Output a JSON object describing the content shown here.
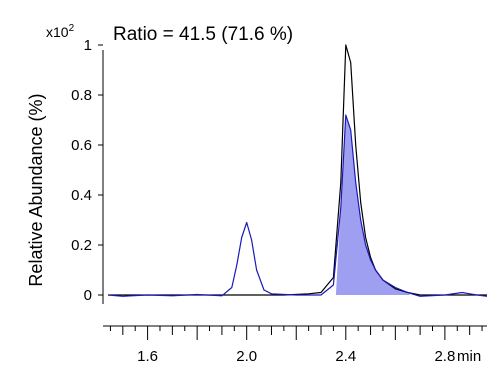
{
  "chart_data": {
    "type": "line",
    "title": "",
    "ylabel": "Relative Abundance (%)",
    "xlabel": "",
    "x_unit": "min",
    "y_multiplier": "x10",
    "y_multiplier_exp": "2",
    "annotation": "Ratio = 41.5 (71.6 %)",
    "xlim": [
      1.42,
      2.97
    ],
    "ylim": [
      -0.1,
      1.1
    ],
    "x_ticks": [
      1.6,
      2.0,
      2.4,
      2.8
    ],
    "y_ticks": [
      0,
      0.2,
      0.4,
      0.6,
      0.8,
      1
    ],
    "x_tick_labels": [
      "1.6",
      "2.0",
      "2.4",
      "2.8"
    ],
    "y_tick_labels": [
      "0",
      "0.2",
      "0.4",
      "0.6",
      "0.8",
      "1"
    ],
    "colors": {
      "series_black": "#000000",
      "series_blue": "#1a1ab8",
      "shaded_fill": "#9f9ff2"
    },
    "shaded_region": {
      "series": "blue",
      "x_start": 2.36,
      "x_end": 2.66
    },
    "series": [
      {
        "color": "#000000",
        "x": [
          1.44,
          1.6,
          1.8,
          1.95,
          2.0,
          2.05,
          2.15,
          2.25,
          2.3,
          2.35,
          2.38,
          2.4,
          2.42,
          2.44,
          2.46,
          2.48,
          2.5,
          2.52,
          2.55,
          2.6,
          2.65,
          2.7,
          2.8,
          2.9,
          2.97
        ],
        "y": [
          0.0,
          0.0,
          0.0,
          0.0,
          0.0,
          0.0,
          0.0,
          0.005,
          0.01,
          0.07,
          0.45,
          1.0,
          0.93,
          0.6,
          0.37,
          0.23,
          0.15,
          0.1,
          0.06,
          0.025,
          0.01,
          0.0,
          0.0,
          0.0,
          0.0
        ]
      },
      {
        "color": "#1a1ab8",
        "x": [
          1.44,
          1.5,
          1.6,
          1.7,
          1.8,
          1.9,
          1.94,
          1.96,
          1.98,
          2.0,
          2.02,
          2.04,
          2.07,
          2.1,
          2.2,
          2.3,
          2.35,
          2.38,
          2.4,
          2.42,
          2.44,
          2.46,
          2.48,
          2.5,
          2.52,
          2.55,
          2.6,
          2.65,
          2.7,
          2.8,
          2.87,
          2.9,
          2.93,
          2.97
        ],
        "y": [
          0.0,
          -0.005,
          0.0,
          -0.003,
          0.002,
          -0.003,
          0.03,
          0.12,
          0.23,
          0.29,
          0.22,
          0.1,
          0.02,
          0.005,
          0.0,
          0.0,
          0.04,
          0.35,
          0.72,
          0.66,
          0.45,
          0.3,
          0.2,
          0.14,
          0.1,
          0.06,
          0.03,
          0.01,
          -0.005,
          0.0,
          0.01,
          0.005,
          0.0,
          -0.005
        ]
      }
    ]
  }
}
